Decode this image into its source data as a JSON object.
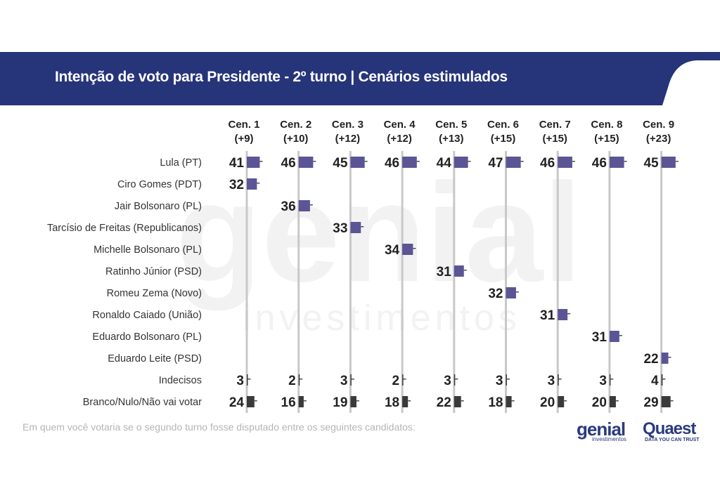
{
  "header": {
    "title": "Intenção de voto para Presidente - 2º turno | Cenários estimulados"
  },
  "footnote": "Em quem você votaria se o segundo turno fosse disputado entre os seguintes candidatos:",
  "logos": {
    "genial": "genial",
    "genial_sub": "investimentos",
    "quaest": "Quaest",
    "quaest_sub": "DATA YOU CAN TRUST"
  },
  "watermark": {
    "big": "genial",
    "small": "investimentos"
  },
  "colors": {
    "banner": "#26347a",
    "candidate": "#5b5595",
    "other": "#3a3a3a",
    "axis": "#c8c8c8"
  },
  "chart_data": {
    "type": "bar",
    "title": "Intenção de voto para Presidente - 2º turno | Cenários estimulados",
    "scenarios": [
      {
        "name": "Cen. 1",
        "diff": "(+9)"
      },
      {
        "name": "Cen. 2",
        "diff": "(+10)"
      },
      {
        "name": "Cen. 3",
        "diff": "(+12)"
      },
      {
        "name": "Cen. 4",
        "diff": "(+12)"
      },
      {
        "name": "Cen. 5",
        "diff": "(+13)"
      },
      {
        "name": "Cen. 6",
        "diff": "(+15)"
      },
      {
        "name": "Cen. 7",
        "diff": "(+15)"
      },
      {
        "name": "Cen. 8",
        "diff": "(+15)"
      },
      {
        "name": "Cen. 9",
        "diff": "(+23)"
      }
    ],
    "rows": [
      {
        "label": "Lula (PT)",
        "kind": "candidate",
        "values": [
          41,
          46,
          45,
          46,
          44,
          47,
          46,
          46,
          45
        ]
      },
      {
        "label": "Ciro Gomes (PDT)",
        "kind": "candidate",
        "values": [
          32,
          null,
          null,
          null,
          null,
          null,
          null,
          null,
          null
        ]
      },
      {
        "label": "Jair Bolsonaro (PL)",
        "kind": "candidate",
        "values": [
          null,
          36,
          null,
          null,
          null,
          null,
          null,
          null,
          null
        ]
      },
      {
        "label": "Tarcísio de Freitas (Republicanos)",
        "kind": "candidate",
        "values": [
          null,
          null,
          33,
          null,
          null,
          null,
          null,
          null,
          null
        ]
      },
      {
        "label": "Michelle Bolsonaro (PL)",
        "kind": "candidate",
        "values": [
          null,
          null,
          null,
          34,
          null,
          null,
          null,
          null,
          null
        ]
      },
      {
        "label": "Ratinho Júnior (PSD)",
        "kind": "candidate",
        "values": [
          null,
          null,
          null,
          null,
          31,
          null,
          null,
          null,
          null
        ]
      },
      {
        "label": "Romeu Zema (Novo)",
        "kind": "candidate",
        "values": [
          null,
          null,
          null,
          null,
          null,
          32,
          null,
          null,
          null
        ]
      },
      {
        "label": "Ronaldo Caiado (União)",
        "kind": "candidate",
        "values": [
          null,
          null,
          null,
          null,
          null,
          null,
          31,
          null,
          null
        ]
      },
      {
        "label": "Eduardo Bolsonaro (PL)",
        "kind": "candidate",
        "values": [
          null,
          null,
          null,
          null,
          null,
          null,
          null,
          31,
          null
        ]
      },
      {
        "label": "Eduardo Leite (PSD)",
        "kind": "candidate",
        "values": [
          null,
          null,
          null,
          null,
          null,
          null,
          null,
          null,
          22
        ]
      },
      {
        "label": "Indecisos",
        "kind": "other",
        "values": [
          3,
          2,
          3,
          2,
          3,
          3,
          3,
          3,
          4
        ]
      },
      {
        "label": "Branco/Nulo/Não vai votar",
        "kind": "other",
        "values": [
          24,
          16,
          19,
          18,
          22,
          18,
          20,
          20,
          29
        ]
      }
    ],
    "xlim": [
      0,
      100
    ]
  }
}
